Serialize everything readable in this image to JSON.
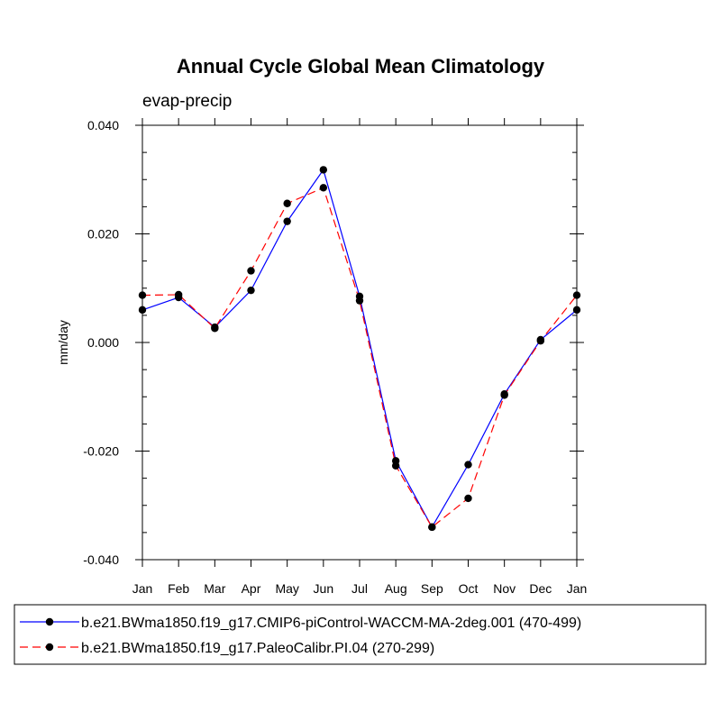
{
  "chart_data": {
    "type": "line",
    "title": "Annual Cycle Global Mean Climatology",
    "subtitle": "evap-precip",
    "xlabel": "",
    "ylabel": "mm/day",
    "categories": [
      "Jan",
      "Feb",
      "Mar",
      "Apr",
      "May",
      "Jun",
      "Jul",
      "Aug",
      "Sep",
      "Oct",
      "Nov",
      "Dec",
      "Jan"
    ],
    "ylim": [
      -0.04,
      0.04
    ],
    "y_ticks": [
      0.04,
      0.02,
      0.0,
      -0.02,
      -0.04
    ],
    "y_tick_labels": [
      "0.040",
      "0.020",
      "0.000",
      "-0.020",
      "-0.040"
    ],
    "grid": false,
    "legend_position": "bottom",
    "series": [
      {
        "name": "b.e21.BWma1850.f19_g17.CMIP6-piControl-WACCM-MA-2deg.001 (470-499)",
        "color": "#0000ff",
        "dash": "solid",
        "values": [
          0.006,
          0.0083,
          0.0028,
          0.0096,
          0.0223,
          0.0318,
          0.0085,
          -0.0218,
          -0.034,
          -0.0225,
          -0.0095,
          0.0005,
          0.006
        ]
      },
      {
        "name": "b.e21.BWma1850.f19_g17.PaleoCalibr.PI.04 (270-299)",
        "color": "#ff0000",
        "dash": "dashed",
        "values": [
          0.0087,
          0.0088,
          0.0026,
          0.0132,
          0.0256,
          0.0285,
          0.0077,
          -0.0227,
          -0.034,
          -0.0287,
          -0.0097,
          0.0003,
          0.0087
        ]
      }
    ]
  }
}
